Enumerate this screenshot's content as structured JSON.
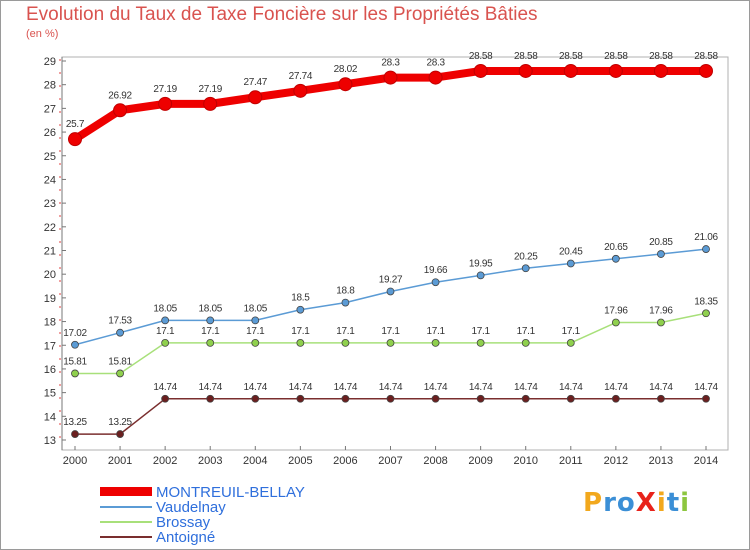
{
  "title": "Evolution du Taux de Taxe Foncière sur les Propriétés Bâties",
  "subtitle": "(en %)",
  "logo": {
    "text": "ProXiti",
    "letters": [
      {
        "ch": "P",
        "color": "#f2a81d"
      },
      {
        "ch": "r",
        "color": "#3b8fd6"
      },
      {
        "ch": "o",
        "color": "#3b8fd6"
      },
      {
        "ch": "X",
        "color": "#e8231b"
      },
      {
        "ch": "i",
        "color": "#f2a81d"
      },
      {
        "ch": "t",
        "color": "#3b8fd6"
      },
      {
        "ch": "i",
        "color": "#8dc63f"
      }
    ]
  },
  "chart_data": {
    "type": "line",
    "x": [
      "2000",
      "2001",
      "2002",
      "2003",
      "2004",
      "2005",
      "2006",
      "2007",
      "2008",
      "2009",
      "2010",
      "2011",
      "2012",
      "2013",
      "2014"
    ],
    "ylim": [
      13,
      29
    ],
    "yticks": [
      13,
      14,
      15,
      16,
      17,
      18,
      19,
      20,
      21,
      22,
      23,
      24,
      25,
      26,
      27,
      28,
      29
    ],
    "grid": false,
    "legend_position": "bottom-left",
    "series": [
      {
        "name": "MONTREUIL-BELLAY",
        "color": "#ee0000",
        "text_color": "#2f6fdc",
        "values": [
          25.7,
          26.92,
          27.19,
          27.19,
          27.47,
          27.74,
          28.02,
          28.3,
          28.3,
          28.58,
          28.58,
          28.58,
          28.58,
          28.58,
          28.58
        ],
        "labels": [
          "25.7",
          "26.92",
          "27.19",
          "27.19",
          "27.47",
          "27.74",
          "28.02",
          "28.3",
          "28.3",
          "28.58",
          "28.58",
          "28.58",
          "28.58",
          "28.58",
          "28.58"
        ]
      },
      {
        "name": "Vaudelnay",
        "color": "#5b9bd5",
        "marker_fill": "#5b9bd5",
        "text_color": "#2f6fdc",
        "values": [
          17.02,
          17.53,
          18.05,
          18.05,
          18.05,
          18.5,
          18.8,
          19.27,
          19.66,
          19.95,
          20.25,
          20.45,
          20.65,
          20.85,
          21.06
        ],
        "labels": [
          "17.02",
          "17.53",
          "18.05",
          "18.05",
          "18.05",
          "18.5",
          "18.8",
          "19.27",
          "19.66",
          "19.95",
          "20.25",
          "20.45",
          "20.65",
          "20.85",
          "21.06"
        ]
      },
      {
        "name": "Brossay",
        "color": "#a8e07a",
        "marker_fill": "#8fd04d",
        "text_color": "#2f6fdc",
        "values": [
          15.81,
          15.81,
          17.1,
          17.1,
          17.1,
          17.1,
          17.1,
          17.1,
          17.1,
          17.1,
          17.1,
          17.1,
          17.96,
          17.96,
          18.35
        ],
        "labels": [
          "15.81",
          "15.81",
          "17.1",
          "17.1",
          "17.1",
          "17.1",
          "17.1",
          "17.1",
          "17.1",
          "17.1",
          "17.1",
          "17.1",
          "17.96",
          "17.96",
          "18.35"
        ]
      },
      {
        "name": "Antoigné",
        "color": "#7a2e2e",
        "marker_fill": "#6b1f1f",
        "text_color": "#2f6fdc",
        "values": [
          13.25,
          13.25,
          14.74,
          14.74,
          14.74,
          14.74,
          14.74,
          14.74,
          14.74,
          14.74,
          14.74,
          14.74,
          14.74,
          14.74,
          14.74
        ],
        "labels": [
          "13.25",
          "13.25",
          "14.74",
          "14.74",
          "14.74",
          "14.74",
          "14.74",
          "14.74",
          "14.74",
          "14.74",
          "14.74",
          "14.74",
          "14.74",
          "14.74",
          "14.74"
        ]
      }
    ]
  }
}
